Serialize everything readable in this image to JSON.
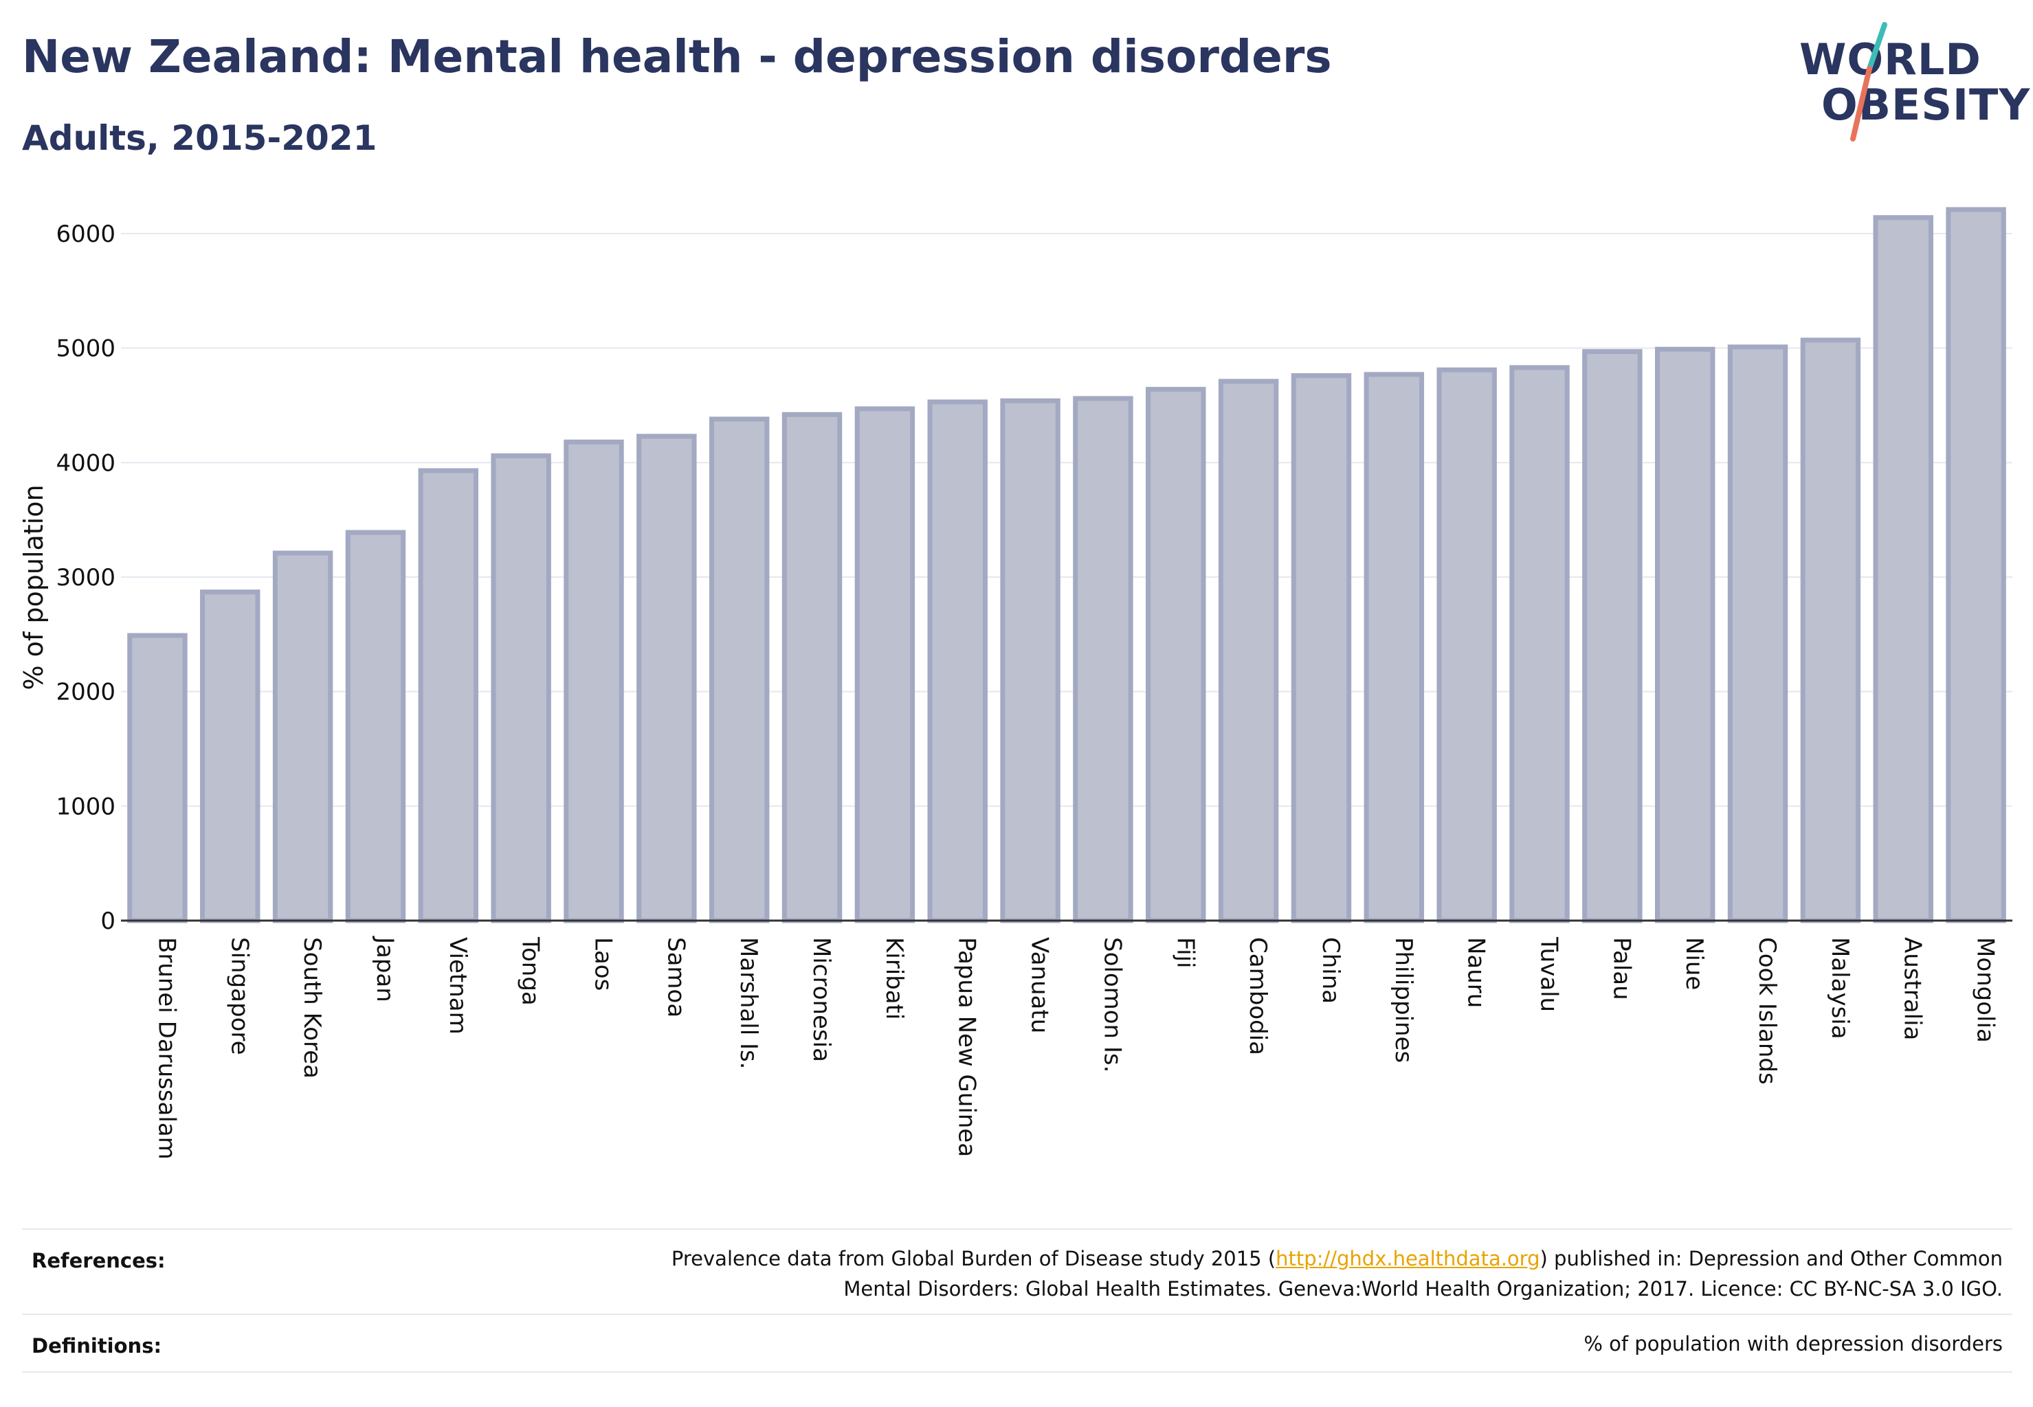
{
  "header": {
    "title": "New Zealand: Mental health - depression disorders",
    "subtitle": "Adults, 2015-2021"
  },
  "logo": {
    "line1": "WORLD",
    "line2": "OBESITY",
    "colors": {
      "text": "#2a3560",
      "slash_top": "#3dbcb6",
      "slash_bottom": "#e8735a"
    }
  },
  "chart_data": {
    "type": "bar",
    "ylabel": "% of population",
    "ylim": [
      0,
      6300
    ],
    "yticks": [
      0,
      1000,
      2000,
      3000,
      4000,
      5000,
      6000
    ],
    "grid": true,
    "categories": [
      "Brunei Darussalam",
      "Singapore",
      "South Korea",
      "Japan",
      "Vietnam",
      "Tonga",
      "Laos",
      "Samoa",
      "Marshall Is.",
      "Micronesia",
      "Kiribati",
      "Papua New Guinea",
      "Vanuatu",
      "Solomon Is.",
      "Fiji",
      "Cambodia",
      "China",
      "Philippines",
      "Nauru",
      "Tuvalu",
      "Palau",
      "Niue",
      "Cook Islands",
      "Malaysia",
      "Australia",
      "Mongolia"
    ],
    "values": [
      2490,
      2870,
      3210,
      3390,
      3930,
      4060,
      4180,
      4230,
      4380,
      4420,
      4470,
      4530,
      4540,
      4560,
      4640,
      4710,
      4760,
      4770,
      4810,
      4830,
      4970,
      4990,
      5010,
      5070,
      6140,
      6210
    ],
    "bar_fill": "#bcc0cf",
    "bar_stroke": "#a3a9c2"
  },
  "footer": {
    "references_label": "References:",
    "references_pre": "Prevalence data from Global Burden of Disease study 2015 (",
    "references_link": "http://ghdx.healthdata.org",
    "references_post": ") published in: Depression and Other Common",
    "references_line2": "Mental Disorders: Global Health Estimates. Geneva:World Health Organization; 2017. Licence: CC BY-NC-SA 3.0 IGO.",
    "definitions_label": "Definitions:",
    "definitions_text": "% of population with depression disorders"
  }
}
